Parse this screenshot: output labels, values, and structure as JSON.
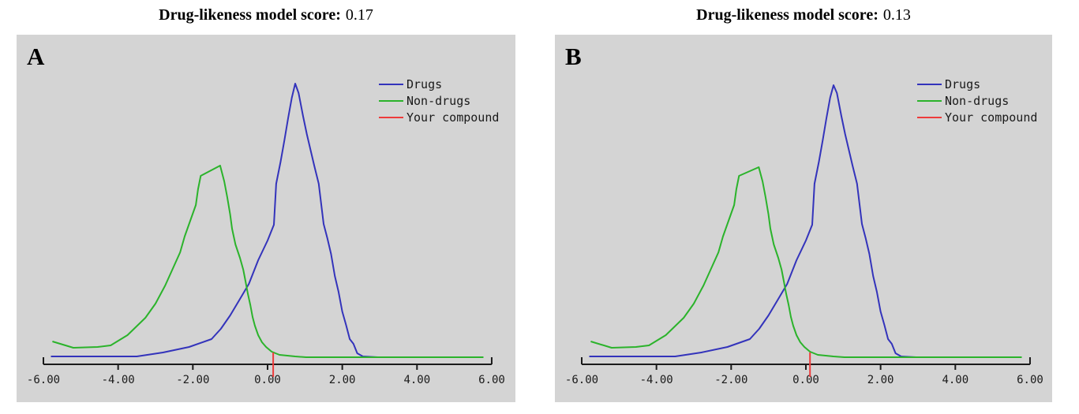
{
  "colors": {
    "page_bg": "#ffffff",
    "panel_bg": "#d4d4d4",
    "axis": "#1a1a1a",
    "drugs": "#3333bb",
    "non_drugs": "#2bb32b",
    "compound": "#ee3b3b"
  },
  "chart_data": [
    {
      "id": "A",
      "panel_label": "A",
      "type": "line",
      "title": "Drug-likeness model score: 0.17",
      "title_prefix": "Drug-likeness model score:",
      "score_text": "0.17",
      "score": 0.17,
      "xlim": [
        -6.4,
        6.4
      ],
      "ylim": [
        0,
        360
      ],
      "y_unit": "relative density (px height above baseline)",
      "x_ticks": [
        -6,
        -4,
        -2,
        0,
        2,
        4,
        6
      ],
      "x_tick_labels": [
        "-6.00",
        "-4.00",
        "-2.00",
        "0.00",
        "2.00",
        "4.00",
        "6.00"
      ],
      "legend_position": "top-right",
      "legend_items": [
        {
          "label": "Drugs",
          "color": "#3333bb"
        },
        {
          "label": "Non-drugs",
          "color": "#2bb32b"
        },
        {
          "label": "Your compound",
          "color": "#ee3b3b"
        }
      ],
      "series": [
        {
          "name": "Drugs",
          "color": "#3333bb",
          "points": [
            [
              -5.8,
              10
            ],
            [
              -4.5,
              10
            ],
            [
              -3.5,
              10
            ],
            [
              -2.8,
              15
            ],
            [
              -2.1,
              22
            ],
            [
              -1.5,
              32
            ],
            [
              -1.25,
              45
            ],
            [
              -1.0,
              62
            ],
            [
              -0.75,
              82
            ],
            [
              -0.5,
              102
            ],
            [
              -0.25,
              132
            ],
            [
              0.0,
              157
            ],
            [
              0.17,
              177
            ],
            [
              0.23,
              229
            ],
            [
              0.35,
              257
            ],
            [
              0.45,
              284
            ],
            [
              0.55,
              312
            ],
            [
              0.65,
              338
            ],
            [
              0.74,
              356
            ],
            [
              0.83,
              344
            ],
            [
              0.95,
              315
            ],
            [
              1.05,
              292
            ],
            [
              1.15,
              272
            ],
            [
              1.25,
              252
            ],
            [
              1.37,
              229
            ],
            [
              1.5,
              178
            ],
            [
              1.6,
              160
            ],
            [
              1.7,
              140
            ],
            [
              1.8,
              112
            ],
            [
              1.9,
              92
            ],
            [
              2.0,
              67
            ],
            [
              2.1,
              50
            ],
            [
              2.2,
              32
            ],
            [
              2.3,
              26
            ],
            [
              2.4,
              14
            ],
            [
              2.55,
              10
            ],
            [
              2.95,
              9
            ]
          ]
        },
        {
          "name": "Non-drugs",
          "color": "#2bb32b",
          "points": [
            [
              -5.76,
              29
            ],
            [
              -5.2,
              21
            ],
            [
              -4.55,
              22
            ],
            [
              -4.2,
              24
            ],
            [
              -3.75,
              37
            ],
            [
              -3.27,
              59
            ],
            [
              -3.0,
              77
            ],
            [
              -2.74,
              100
            ],
            [
              -2.53,
              122
            ],
            [
              -2.34,
              142
            ],
            [
              -2.22,
              162
            ],
            [
              -2.07,
              182
            ],
            [
              -1.92,
              202
            ],
            [
              -1.86,
              222
            ],
            [
              -1.79,
              239
            ],
            [
              -1.27,
              252
            ],
            [
              -1.16,
              232
            ],
            [
              -1.08,
              212
            ],
            [
              -1.0,
              190
            ],
            [
              -0.95,
              172
            ],
            [
              -0.86,
              152
            ],
            [
              -0.74,
              135
            ],
            [
              -0.65,
              120
            ],
            [
              -0.59,
              105
            ],
            [
              -0.53,
              90
            ],
            [
              -0.46,
              75
            ],
            [
              -0.4,
              60
            ],
            [
              -0.34,
              49
            ],
            [
              -0.25,
              37
            ],
            [
              -0.15,
              28
            ],
            [
              -0.04,
              22
            ],
            [
              0.11,
              16
            ],
            [
              0.32,
              12
            ],
            [
              0.53,
              11
            ],
            [
              0.74,
              10
            ],
            [
              1.03,
              9
            ],
            [
              2.5,
              9
            ],
            [
              5.78,
              9
            ]
          ]
        }
      ],
      "compound_marker": {
        "name": "Your compound",
        "color": "#ee3b3b",
        "x": 0.15
      }
    },
    {
      "id": "B",
      "panel_label": "B",
      "type": "line",
      "title": "Drug-likeness model score: 0.13",
      "title_prefix": "Drug-likeness model score:",
      "score_text": "0.13",
      "score": 0.13,
      "xlim": [
        -6.4,
        6.4
      ],
      "ylim": [
        0,
        360
      ],
      "y_unit": "relative density (px height above baseline)",
      "x_ticks": [
        -6,
        -4,
        -2,
        0,
        2,
        4,
        6
      ],
      "x_tick_labels": [
        "-6.00",
        "-4.00",
        "-2.00",
        "0.00",
        "2.00",
        "4.00",
        "6.00"
      ],
      "legend_position": "top-right",
      "legend_items": [
        {
          "label": "Drugs",
          "color": "#3333bb"
        },
        {
          "label": "Non-drugs",
          "color": "#2bb32b"
        },
        {
          "label": "Your compound",
          "color": "#ee3b3b"
        }
      ],
      "series": [
        {
          "name": "Drugs",
          "color": "#3333bb",
          "points": [
            [
              -5.8,
              10
            ],
            [
              -4.5,
              10
            ],
            [
              -3.5,
              10
            ],
            [
              -2.8,
              15
            ],
            [
              -2.1,
              22
            ],
            [
              -1.5,
              32
            ],
            [
              -1.25,
              45
            ],
            [
              -1.0,
              62
            ],
            [
              -0.75,
              82
            ],
            [
              -0.5,
              102
            ],
            [
              -0.25,
              132
            ],
            [
              0.0,
              157
            ],
            [
              0.17,
              177
            ],
            [
              0.23,
              229
            ],
            [
              0.35,
              257
            ],
            [
              0.45,
              284
            ],
            [
              0.55,
              312
            ],
            [
              0.65,
              338
            ],
            [
              0.74,
              354
            ],
            [
              0.83,
              344
            ],
            [
              0.95,
              315
            ],
            [
              1.05,
              292
            ],
            [
              1.15,
              272
            ],
            [
              1.25,
              252
            ],
            [
              1.37,
              229
            ],
            [
              1.5,
              178
            ],
            [
              1.6,
              160
            ],
            [
              1.7,
              140
            ],
            [
              1.8,
              112
            ],
            [
              1.9,
              92
            ],
            [
              2.0,
              67
            ],
            [
              2.1,
              50
            ],
            [
              2.2,
              32
            ],
            [
              2.3,
              26
            ],
            [
              2.4,
              14
            ],
            [
              2.55,
              10
            ],
            [
              2.95,
              9
            ]
          ]
        },
        {
          "name": "Non-drugs",
          "color": "#2bb32b",
          "points": [
            [
              -5.76,
              29
            ],
            [
              -5.2,
              21
            ],
            [
              -4.55,
              22
            ],
            [
              -4.2,
              24
            ],
            [
              -3.75,
              37
            ],
            [
              -3.27,
              59
            ],
            [
              -3.0,
              77
            ],
            [
              -2.74,
              100
            ],
            [
              -2.53,
              122
            ],
            [
              -2.34,
              142
            ],
            [
              -2.22,
              162
            ],
            [
              -2.07,
              182
            ],
            [
              -1.92,
              202
            ],
            [
              -1.86,
              222
            ],
            [
              -1.79,
              239
            ],
            [
              -1.26,
              250
            ],
            [
              -1.16,
              232
            ],
            [
              -1.08,
              212
            ],
            [
              -1.0,
              190
            ],
            [
              -0.95,
              172
            ],
            [
              -0.86,
              152
            ],
            [
              -0.74,
              135
            ],
            [
              -0.65,
              120
            ],
            [
              -0.59,
              105
            ],
            [
              -0.53,
              90
            ],
            [
              -0.46,
              75
            ],
            [
              -0.4,
              60
            ],
            [
              -0.34,
              49
            ],
            [
              -0.25,
              37
            ],
            [
              -0.15,
              28
            ],
            [
              -0.04,
              22
            ],
            [
              0.11,
              16
            ],
            [
              0.32,
              12
            ],
            [
              0.53,
              11
            ],
            [
              0.74,
              10
            ],
            [
              1.03,
              9
            ],
            [
              2.5,
              9
            ],
            [
              5.78,
              9
            ]
          ]
        }
      ],
      "compound_marker": {
        "name": "Your compound",
        "color": "#ee3b3b",
        "x": 0.11
      }
    }
  ]
}
